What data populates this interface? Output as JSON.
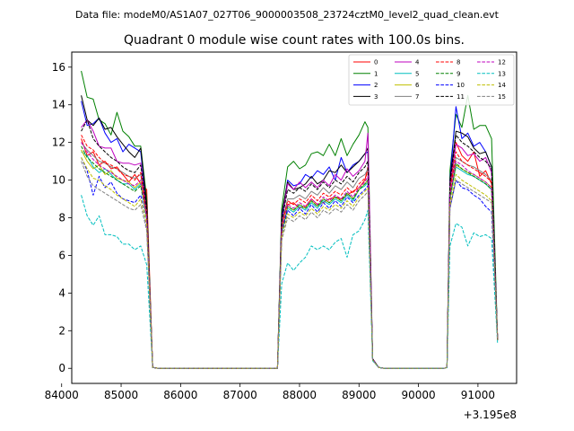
{
  "figure": {
    "suptitle": "Data file: modeM0/AS1A07_027T06_9000003508_23724cztM0_level2_quad_clean.evt"
  },
  "chart_data": {
    "type": "line",
    "title": "Quadrant 0 module wise count rates with 100.0s bins.",
    "xlabel": "",
    "ylabel": "",
    "x_offset_label": "+3.195e8",
    "xlim": [
      84170,
      91650
    ],
    "ylim": [
      -0.8,
      16.8
    ],
    "xticks": [
      84000,
      85000,
      86000,
      87000,
      88000,
      89000,
      90000,
      91000
    ],
    "yticks": [
      0,
      2,
      4,
      6,
      8,
      10,
      12,
      14,
      16
    ],
    "xtick_labels": [
      "84000",
      "85000",
      "86000",
      "87000",
      "88000",
      "89000",
      "90000",
      "91000"
    ],
    "ytick_labels": [
      "0",
      "2",
      "4",
      "6",
      "8",
      "10",
      "12",
      "14",
      "16"
    ],
    "legend_position": "top-right",
    "legend_columns": 4,
    "x": [
      84330,
      84430,
      84530,
      84630,
      84730,
      84830,
      84930,
      85030,
      85130,
      85230,
      85330,
      85430,
      85530,
      85630,
      86630,
      87630,
      87700,
      87800,
      87900,
      88000,
      88100,
      88200,
      88300,
      88400,
      88500,
      88600,
      88700,
      88800,
      88900,
      89000,
      89100,
      89150,
      89230,
      89330,
      89430,
      90430,
      90480,
      90530,
      90630,
      90730,
      90830,
      90930,
      91030,
      91130,
      91230,
      91330
    ],
    "series": [
      {
        "name": "0",
        "color": "#ff0000",
        "dash": "solid",
        "values": [
          12.2,
          11.3,
          11.5,
          10.8,
          11.0,
          10.6,
          10.7,
          10.3,
          9.9,
          10.3,
          9.8,
          9.5,
          0.05,
          0,
          0,
          0,
          7.9,
          8.7,
          8.8,
          8.5,
          8.6,
          9.0,
          8.7,
          8.8,
          9.0,
          9.1,
          9.0,
          9.2,
          9.4,
          9.6,
          10.0,
          10.7,
          0.45,
          0.05,
          0,
          0,
          0.05,
          9.5,
          12.0,
          11.3,
          11.0,
          11.5,
          10.2,
          10.5,
          9.8,
          1.6
        ]
      },
      {
        "name": "1",
        "color": "#008000",
        "dash": "solid",
        "values": [
          15.8,
          14.4,
          14.3,
          13.2,
          13.0,
          12.4,
          13.6,
          12.6,
          12.3,
          11.8,
          11.8,
          9.0,
          0.05,
          0,
          0,
          0,
          8.5,
          10.7,
          11.0,
          10.6,
          10.8,
          11.4,
          11.5,
          11.3,
          11.9,
          11.3,
          12.2,
          11.3,
          11.9,
          12.4,
          13.1,
          12.8,
          0.5,
          0.05,
          0,
          0,
          0.05,
          10.5,
          13.5,
          12.8,
          14.5,
          12.7,
          12.9,
          12.9,
          12.2,
          1.5
        ]
      },
      {
        "name": "2",
        "color": "#0000ff",
        "dash": "solid",
        "values": [
          14.2,
          12.9,
          13.0,
          13.3,
          12.5,
          12.0,
          12.2,
          11.5,
          11.9,
          11.7,
          11.5,
          8.5,
          0.05,
          0,
          0,
          0,
          8.0,
          10.0,
          9.7,
          9.8,
          10.3,
          10.1,
          10.5,
          10.3,
          10.7,
          10.0,
          11.2,
          10.4,
          10.8,
          11.0,
          11.4,
          11.5,
          0.5,
          0.05,
          0,
          0,
          0.05,
          10.0,
          13.9,
          12.2,
          12.5,
          11.8,
          12.0,
          11.5,
          10.7,
          1.5
        ]
      },
      {
        "name": "3",
        "color": "#000000",
        "dash": "solid",
        "values": [
          14.5,
          13.2,
          12.9,
          13.3,
          12.7,
          12.8,
          12.3,
          11.9,
          11.5,
          11.2,
          11.7,
          8.7,
          0.05,
          0,
          0,
          0,
          8.2,
          9.9,
          9.5,
          9.6,
          9.8,
          10.2,
          9.8,
          10.0,
          10.5,
          10.4,
          10.8,
          10.4,
          10.7,
          11.0,
          11.4,
          11.7,
          0.5,
          0.05,
          0,
          0,
          0.05,
          10.0,
          12.6,
          12.5,
          12.3,
          11.7,
          11.4,
          11.5,
          10.7,
          1.5
        ]
      },
      {
        "name": "4",
        "color": "#bf00bf",
        "dash": "solid",
        "values": [
          12.8,
          13.2,
          12.6,
          11.8,
          11.7,
          11.7,
          11.0,
          10.9,
          10.9,
          10.8,
          10.9,
          8.3,
          0.05,
          0,
          0,
          0,
          7.7,
          9.8,
          9.5,
          9.9,
          9.6,
          9.9,
          9.6,
          10.0,
          9.7,
          10.3,
          10.0,
          10.6,
          10.2,
          10.5,
          11.0,
          12.5,
          0.5,
          0.05,
          0,
          0,
          0.05,
          9.8,
          11.9,
          11.7,
          11.3,
          11.4,
          11.0,
          11.2,
          10.4,
          1.5
        ]
      },
      {
        "name": "5",
        "color": "#00bfbf",
        "dash": "solid",
        "values": [
          11.5,
          11.3,
          10.7,
          10.4,
          10.6,
          10.3,
          10.0,
          9.8,
          9.8,
          9.5,
          9.8,
          7.9,
          0.05,
          0,
          0,
          0,
          7.2,
          8.5,
          8.3,
          8.6,
          8.4,
          8.8,
          8.5,
          8.9,
          8.7,
          9.0,
          8.8,
          9.2,
          8.9,
          9.5,
          9.7,
          9.9,
          0.45,
          0.05,
          0,
          0,
          0.05,
          9.0,
          10.7,
          10.5,
          10.3,
          10.2,
          10.0,
          9.8,
          9.5,
          1.5
        ]
      },
      {
        "name": "6",
        "color": "#bfbf00",
        "dash": "solid",
        "values": [
          11.6,
          11.0,
          10.6,
          10.8,
          10.3,
          10.5,
          10.1,
          10.0,
          9.9,
          9.6,
          9.9,
          8.0,
          0.05,
          0,
          0,
          0,
          7.3,
          8.6,
          8.4,
          8.7,
          8.5,
          8.9,
          8.6,
          9.0,
          8.8,
          9.1,
          8.9,
          9.3,
          9.0,
          9.5,
          9.8,
          10.0,
          0.45,
          0.05,
          0,
          0,
          0.05,
          9.1,
          10.8,
          10.6,
          10.4,
          10.3,
          10.1,
          9.9,
          9.6,
          1.5
        ]
      },
      {
        "name": "7",
        "color": "#808080",
        "dash": "solid",
        "values": [
          12.0,
          11.6,
          11.3,
          11.0,
          10.9,
          10.7,
          10.6,
          10.4,
          10.2,
          10.1,
          10.3,
          8.2,
          0.05,
          0,
          0,
          0,
          7.6,
          9.0,
          9.0,
          9.2,
          9.0,
          9.4,
          9.2,
          9.6,
          9.3,
          9.7,
          9.5,
          9.9,
          9.6,
          10.1,
          10.3,
          10.6,
          0.45,
          0.05,
          0,
          0,
          0.05,
          9.5,
          11.2,
          11.0,
          10.8,
          10.7,
          10.5,
          10.3,
          10.0,
          1.5
        ]
      },
      {
        "name": "8",
        "color": "#ff0000",
        "dash": "dashed",
        "values": [
          12.4,
          11.8,
          11.6,
          11.2,
          10.9,
          10.8,
          10.6,
          10.3,
          10.2,
          10.0,
          10.4,
          8.1,
          0.05,
          0,
          0,
          0,
          7.5,
          8.9,
          8.7,
          9.0,
          8.8,
          9.2,
          8.9,
          9.3,
          9.1,
          9.4,
          9.2,
          9.6,
          9.3,
          9.8,
          10.1,
          10.4,
          0.45,
          0.05,
          0,
          0,
          0.05,
          9.3,
          11.5,
          11.0,
          10.8,
          10.6,
          10.4,
          10.2,
          9.9,
          1.5
        ]
      },
      {
        "name": "9",
        "color": "#008000",
        "dash": "dashed",
        "values": [
          11.8,
          11.2,
          10.9,
          10.6,
          10.4,
          10.2,
          10.0,
          9.8,
          9.6,
          9.4,
          9.7,
          7.9,
          0.05,
          0,
          0,
          0,
          7.3,
          8.6,
          8.4,
          8.7,
          8.5,
          8.9,
          8.6,
          9.0,
          8.8,
          9.1,
          8.9,
          9.3,
          9.0,
          9.5,
          9.8,
          10.0,
          0.45,
          0.05,
          0,
          0,
          0.05,
          9.0,
          10.9,
          10.6,
          10.4,
          10.2,
          10.0,
          9.8,
          9.5,
          1.5
        ]
      },
      {
        "name": "10",
        "color": "#0000ff",
        "dash": "dashed",
        "values": [
          11.2,
          10.5,
          9.2,
          10.2,
          9.6,
          9.9,
          9.3,
          9.0,
          8.9,
          8.8,
          9.2,
          7.5,
          0.05,
          0,
          0,
          0,
          7.0,
          8.4,
          8.1,
          8.5,
          8.2,
          8.7,
          8.3,
          8.8,
          8.5,
          8.9,
          8.6,
          9.1,
          8.8,
          9.2,
          9.5,
          9.7,
          0.45,
          0.05,
          0,
          0,
          0.05,
          8.5,
          10.0,
          9.6,
          9.5,
          9.2,
          9.0,
          8.6,
          8.3,
          1.5
        ]
      },
      {
        "name": "11",
        "color": "#000000",
        "dash": "dashed",
        "values": [
          12.6,
          13.2,
          12.2,
          11.8,
          11.5,
          11.2,
          11.0,
          10.7,
          10.5,
          10.4,
          10.8,
          8.4,
          0.05,
          0,
          0,
          0,
          7.8,
          9.5,
          9.3,
          9.6,
          9.4,
          9.8,
          9.5,
          9.9,
          9.6,
          10.0,
          9.8,
          10.2,
          9.9,
          10.4,
          10.7,
          11.0,
          0.5,
          0.05,
          0,
          0,
          0.05,
          9.8,
          12.4,
          12.0,
          11.8,
          11.5,
          11.2,
          11.0,
          10.6,
          1.5
        ]
      },
      {
        "name": "12",
        "color": "#bf00bf",
        "dash": "dashed",
        "values": [
          12.0,
          11.5,
          11.1,
          10.8,
          10.6,
          10.4,
          10.2,
          10.0,
          9.8,
          9.7,
          10.0,
          8.0,
          0.05,
          0,
          0,
          0,
          7.4,
          8.7,
          8.5,
          8.8,
          8.6,
          9.0,
          8.7,
          9.1,
          8.9,
          9.2,
          9.0,
          9.4,
          9.1,
          9.6,
          9.9,
          10.2,
          0.45,
          0.05,
          0,
          0,
          0.05,
          9.2,
          11.0,
          10.8,
          10.5,
          10.3,
          10.1,
          9.9,
          9.6,
          1.5
        ]
      },
      {
        "name": "13",
        "color": "#00bfbf",
        "dash": "dashed",
        "values": [
          9.2,
          8.1,
          7.6,
          8.1,
          7.1,
          7.1,
          7.0,
          6.6,
          6.6,
          6.3,
          6.5,
          5.5,
          0.05,
          0,
          0,
          0,
          4.5,
          5.6,
          5.2,
          5.6,
          5.9,
          6.5,
          6.3,
          6.5,
          6.3,
          6.7,
          6.9,
          5.9,
          7.1,
          7.3,
          7.9,
          8.4,
          0.4,
          0.05,
          0,
          0,
          0.05,
          6.5,
          7.7,
          7.5,
          6.5,
          7.2,
          7.0,
          7.1,
          6.9,
          1.3
        ]
      },
      {
        "name": "14",
        "color": "#bfbf00",
        "dash": "dashed",
        "values": [
          11.2,
          10.6,
          10.1,
          10.0,
          9.7,
          9.5,
          9.2,
          9.0,
          8.8,
          8.6,
          9.0,
          7.6,
          0.05,
          0,
          0,
          0,
          7.0,
          8.2,
          8.0,
          8.3,
          8.1,
          8.5,
          8.2,
          8.6,
          8.4,
          8.7,
          8.5,
          8.9,
          8.6,
          9.1,
          9.4,
          9.6,
          0.45,
          0.05,
          0,
          0,
          0.05,
          8.7,
          10.3,
          10.0,
          9.8,
          9.6,
          9.4,
          9.2,
          8.9,
          1.5
        ]
      },
      {
        "name": "15",
        "color": "#808080",
        "dash": "dashed",
        "values": [
          11.0,
          10.2,
          9.7,
          9.5,
          9.3,
          9.1,
          8.9,
          8.7,
          8.5,
          8.4,
          8.7,
          7.3,
          0.05,
          0,
          0,
          0,
          6.8,
          8.0,
          7.8,
          8.1,
          7.9,
          8.3,
          8.0,
          8.4,
          8.2,
          8.5,
          8.3,
          8.7,
          8.4,
          8.9,
          9.2,
          9.4,
          0.45,
          0.05,
          0,
          0,
          0.05,
          8.5,
          10.0,
          9.8,
          9.6,
          9.4,
          9.2,
          9.0,
          8.8,
          1.5
        ]
      }
    ]
  }
}
